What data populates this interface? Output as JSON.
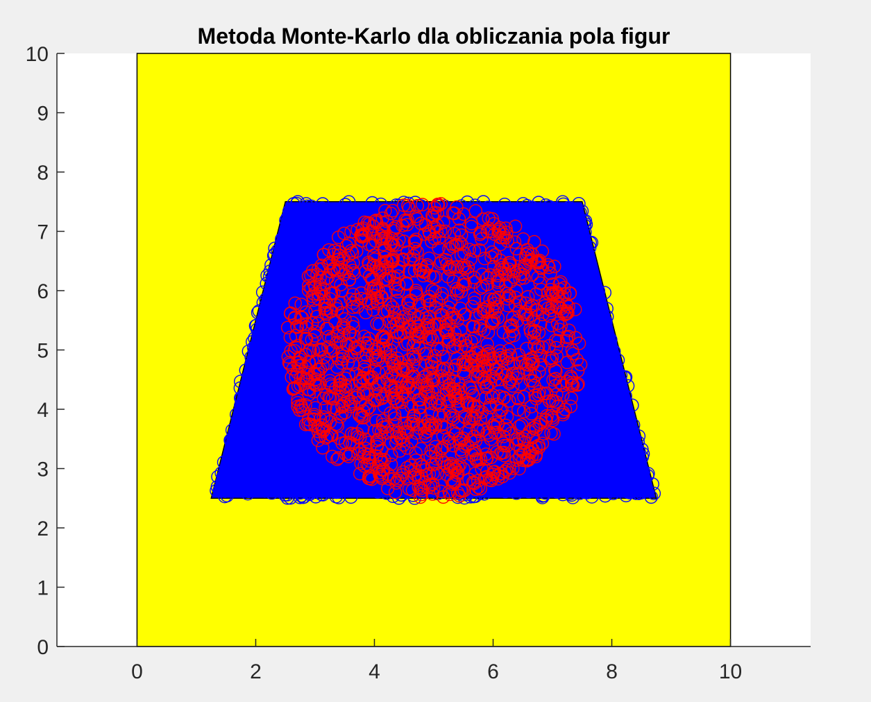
{
  "chart_data": {
    "type": "scatter",
    "title": "Metoda Monte-Karlo dla obliczania pola figur",
    "xlabel": "",
    "ylabel": "",
    "xlim": [
      -1.35,
      11.35
    ],
    "ylim": [
      0,
      10
    ],
    "xticks": [
      0,
      2,
      4,
      6,
      8,
      10
    ],
    "yticks": [
      0,
      1,
      2,
      3,
      4,
      5,
      6,
      7,
      8,
      9,
      10
    ],
    "grid": false,
    "legend": "none",
    "shapes": [
      {
        "name": "square",
        "fill": "#ffff00",
        "points": [
          [
            0,
            0
          ],
          [
            10,
            0
          ],
          [
            10,
            10
          ],
          [
            0,
            10
          ]
        ]
      },
      {
        "name": "trapezoid",
        "fill": "#0000ff",
        "points": [
          [
            1.25,
            2.5
          ],
          [
            8.75,
            2.5
          ],
          [
            7.5,
            7.5
          ],
          [
            2.5,
            7.5
          ]
        ]
      }
    ],
    "series": [
      {
        "marker": "circle",
        "color": "#0000ff",
        "region": "trapezoid",
        "count": 2500
      },
      {
        "marker": "circle",
        "color": "#ff0000",
        "region": "circle",
        "center": [
          5,
          5
        ],
        "radius": 2.5,
        "count": 1500
      }
    ]
  }
}
